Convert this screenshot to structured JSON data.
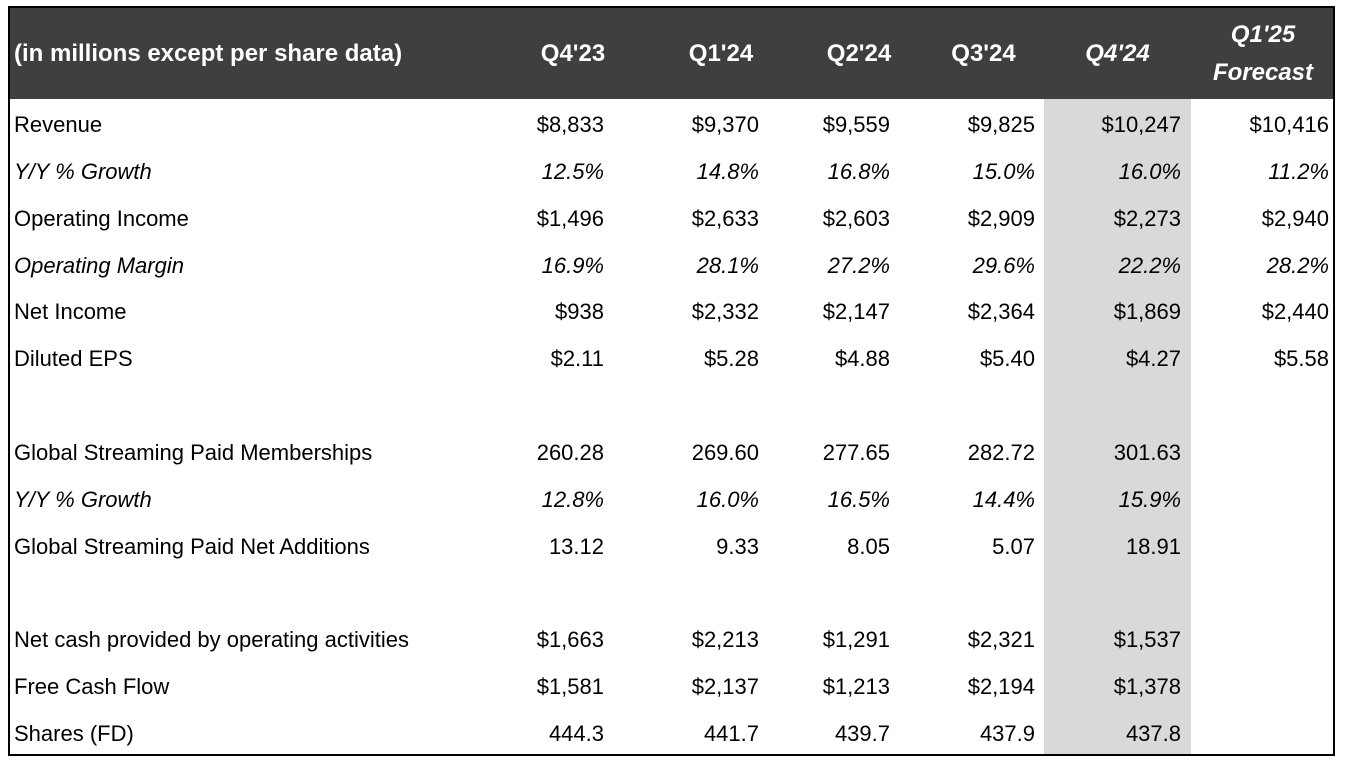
{
  "header": {
    "label": "(in millions except per share data)",
    "columns": [
      "Q4'23",
      "Q1'24",
      "Q2'24",
      "Q3'24",
      "Q4'24"
    ],
    "forecast_line1": "Q1'25",
    "forecast_line2": "Forecast"
  },
  "highlight_color": "#d9d9d9",
  "header_color": "#3f3f3f",
  "rows": [
    {
      "label": "Revenue",
      "values": [
        "$8,833",
        "$9,370",
        "$9,559",
        "$9,825",
        "$10,247",
        "$10,416"
      ]
    },
    {
      "label": "Y/Y % Growth",
      "values": [
        "12.5%",
        "14.8%",
        "16.8%",
        "15.0%",
        "16.0%",
        "11.2%"
      ]
    },
    {
      "label": "Operating Income",
      "values": [
        "$1,496",
        "$2,633",
        "$2,603",
        "$2,909",
        "$2,273",
        "$2,940"
      ]
    },
    {
      "label": "Operating Margin",
      "values": [
        "16.9%",
        "28.1%",
        "27.2%",
        "29.6%",
        "22.2%",
        "28.2%"
      ]
    },
    {
      "label": "Net Income",
      "values": [
        "$938",
        "$2,332",
        "$2,147",
        "$2,364",
        "$1,869",
        "$2,440"
      ]
    },
    {
      "label": "Diluted EPS",
      "values": [
        "$2.11",
        "$5.28",
        "$4.88",
        "$5.40",
        "$4.27",
        "$5.58"
      ]
    },
    {
      "label": "Global Streaming Paid Memberships",
      "values": [
        "260.28",
        "269.60",
        "277.65",
        "282.72",
        "301.63",
        ""
      ]
    },
    {
      "label": "Y/Y % Growth",
      "values": [
        "12.8%",
        "16.0%",
        "16.5%",
        "14.4%",
        "15.9%",
        ""
      ]
    },
    {
      "label": "Global Streaming Paid Net Additions",
      "values": [
        "13.12",
        "9.33",
        "8.05",
        "5.07",
        "18.91",
        ""
      ]
    },
    {
      "label": "Net cash provided by operating activities",
      "values": [
        "$1,663",
        "$2,213",
        "$1,291",
        "$2,321",
        "$1,537",
        ""
      ]
    },
    {
      "label": "Free Cash Flow",
      "values": [
        "$1,581",
        "$2,137",
        "$1,213",
        "$2,194",
        "$1,378",
        ""
      ]
    },
    {
      "label": "Shares (FD)",
      "values": [
        "444.3",
        "441.7",
        "439.7",
        "437.9",
        "437.8",
        ""
      ]
    }
  ]
}
